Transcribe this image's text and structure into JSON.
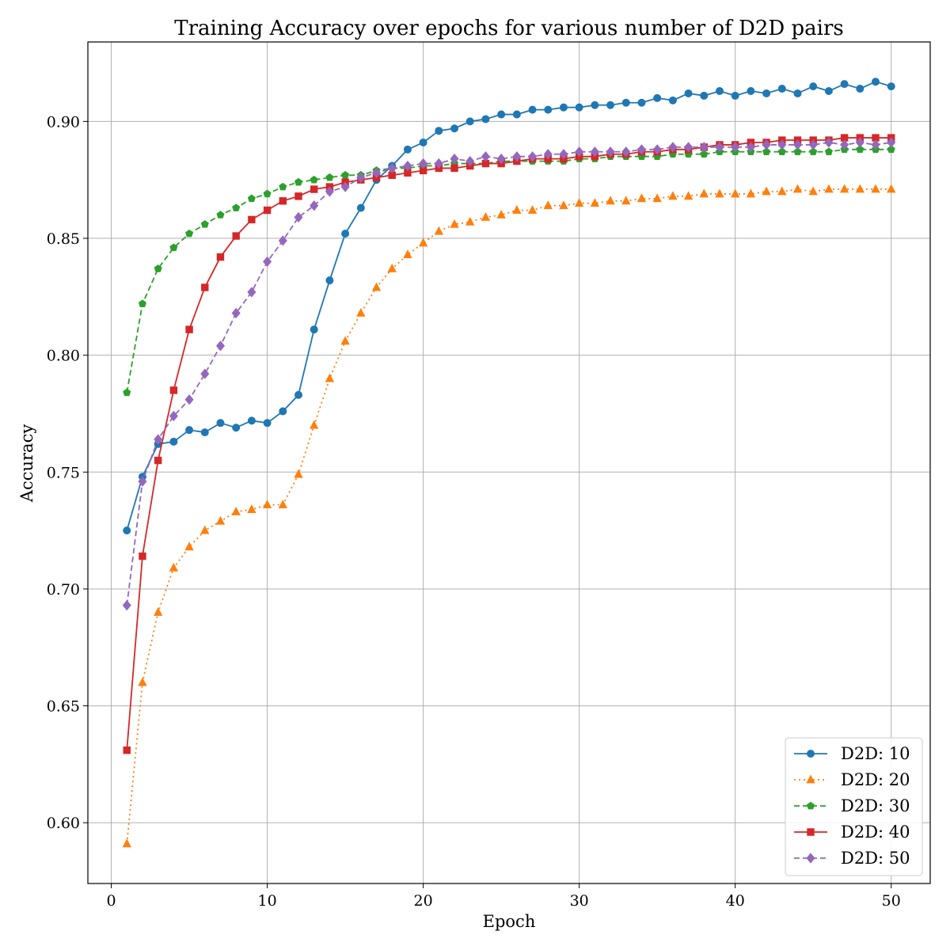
{
  "chart_data": {
    "type": "line",
    "title": "Training Accuracy over epochs for various number of D2D pairs",
    "xlabel": "Epoch",
    "ylabel": "Accuracy",
    "xlim": [
      -1.5,
      52.5
    ],
    "ylim": [
      0.574,
      0.934
    ],
    "xticks": [
      0,
      10,
      20,
      30,
      40,
      50
    ],
    "yticks": [
      0.6,
      0.65,
      0.7,
      0.75,
      0.8,
      0.85,
      0.9
    ],
    "ytick_labels": [
      "0.60",
      "0.65",
      "0.70",
      "0.75",
      "0.80",
      "0.85",
      "0.90"
    ],
    "xtick_labels": [
      "0",
      "10",
      "20",
      "30",
      "40",
      "50"
    ],
    "grid": true,
    "legend_position": "bottom-right",
    "x": [
      1,
      2,
      3,
      4,
      5,
      6,
      7,
      8,
      9,
      10,
      11,
      12,
      13,
      14,
      15,
      16,
      17,
      18,
      19,
      20,
      21,
      22,
      23,
      24,
      25,
      26,
      27,
      28,
      29,
      30,
      31,
      32,
      33,
      34,
      35,
      36,
      37,
      38,
      39,
      40,
      41,
      42,
      43,
      44,
      45,
      46,
      47,
      48,
      49,
      50
    ],
    "series": [
      {
        "name": "D2D: 10",
        "color": "#1f77b4",
        "linestyle": "solid",
        "marker": "circle",
        "values": [
          0.725,
          0.748,
          0.762,
          0.763,
          0.768,
          0.767,
          0.771,
          0.769,
          0.772,
          0.771,
          0.776,
          0.783,
          0.811,
          0.832,
          0.852,
          0.863,
          0.875,
          0.881,
          0.888,
          0.891,
          0.896,
          0.897,
          0.9,
          0.901,
          0.903,
          0.903,
          0.905,
          0.905,
          0.906,
          0.906,
          0.907,
          0.907,
          0.908,
          0.908,
          0.91,
          0.909,
          0.912,
          0.911,
          0.913,
          0.911,
          0.913,
          0.912,
          0.914,
          0.912,
          0.915,
          0.913,
          0.916,
          0.914,
          0.917,
          0.915
        ]
      },
      {
        "name": "D2D: 20",
        "color": "#ff7f0e",
        "linestyle": "dotted",
        "marker": "triangle",
        "values": [
          0.591,
          0.66,
          0.69,
          0.709,
          0.718,
          0.725,
          0.729,
          0.733,
          0.734,
          0.736,
          0.736,
          0.749,
          0.77,
          0.79,
          0.806,
          0.818,
          0.829,
          0.837,
          0.843,
          0.848,
          0.853,
          0.856,
          0.857,
          0.859,
          0.86,
          0.862,
          0.862,
          0.864,
          0.864,
          0.865,
          0.865,
          0.866,
          0.866,
          0.867,
          0.867,
          0.868,
          0.868,
          0.869,
          0.869,
          0.869,
          0.869,
          0.87,
          0.87,
          0.871,
          0.87,
          0.871,
          0.871,
          0.871,
          0.871,
          0.871
        ]
      },
      {
        "name": "D2D: 30",
        "color": "#2ca02c",
        "linestyle": "dashed",
        "marker": "pentagon",
        "values": [
          0.784,
          0.822,
          0.837,
          0.846,
          0.852,
          0.856,
          0.86,
          0.863,
          0.867,
          0.869,
          0.872,
          0.874,
          0.875,
          0.876,
          0.877,
          0.877,
          0.879,
          0.88,
          0.88,
          0.881,
          0.881,
          0.882,
          0.882,
          0.882,
          0.883,
          0.883,
          0.883,
          0.883,
          0.883,
          0.884,
          0.884,
          0.885,
          0.885,
          0.885,
          0.885,
          0.886,
          0.886,
          0.886,
          0.887,
          0.887,
          0.887,
          0.887,
          0.887,
          0.887,
          0.887,
          0.887,
          0.888,
          0.888,
          0.888,
          0.888
        ]
      },
      {
        "name": "D2D: 40",
        "color": "#d62728",
        "linestyle": "solid",
        "marker": "square",
        "values": [
          0.631,
          0.714,
          0.755,
          0.785,
          0.811,
          0.829,
          0.842,
          0.851,
          0.858,
          0.862,
          0.866,
          0.868,
          0.871,
          0.872,
          0.874,
          0.875,
          0.876,
          0.877,
          0.878,
          0.879,
          0.88,
          0.88,
          0.881,
          0.882,
          0.882,
          0.883,
          0.884,
          0.884,
          0.884,
          0.885,
          0.885,
          0.886,
          0.886,
          0.887,
          0.887,
          0.888,
          0.888,
          0.889,
          0.89,
          0.89,
          0.891,
          0.891,
          0.892,
          0.892,
          0.892,
          0.892,
          0.893,
          0.893,
          0.893,
          0.893
        ]
      },
      {
        "name": "D2D: 50",
        "color": "#9467bd",
        "linestyle": "dashed",
        "marker": "diamond",
        "values": [
          0.693,
          0.746,
          0.764,
          0.774,
          0.781,
          0.792,
          0.804,
          0.818,
          0.827,
          0.84,
          0.849,
          0.859,
          0.864,
          0.87,
          0.872,
          0.876,
          0.878,
          0.88,
          0.881,
          0.882,
          0.882,
          0.884,
          0.883,
          0.885,
          0.884,
          0.885,
          0.885,
          0.886,
          0.886,
          0.887,
          0.887,
          0.887,
          0.887,
          0.888,
          0.888,
          0.889,
          0.889,
          0.889,
          0.889,
          0.889,
          0.889,
          0.89,
          0.89,
          0.89,
          0.89,
          0.891,
          0.89,
          0.891,
          0.89,
          0.891
        ]
      }
    ]
  }
}
